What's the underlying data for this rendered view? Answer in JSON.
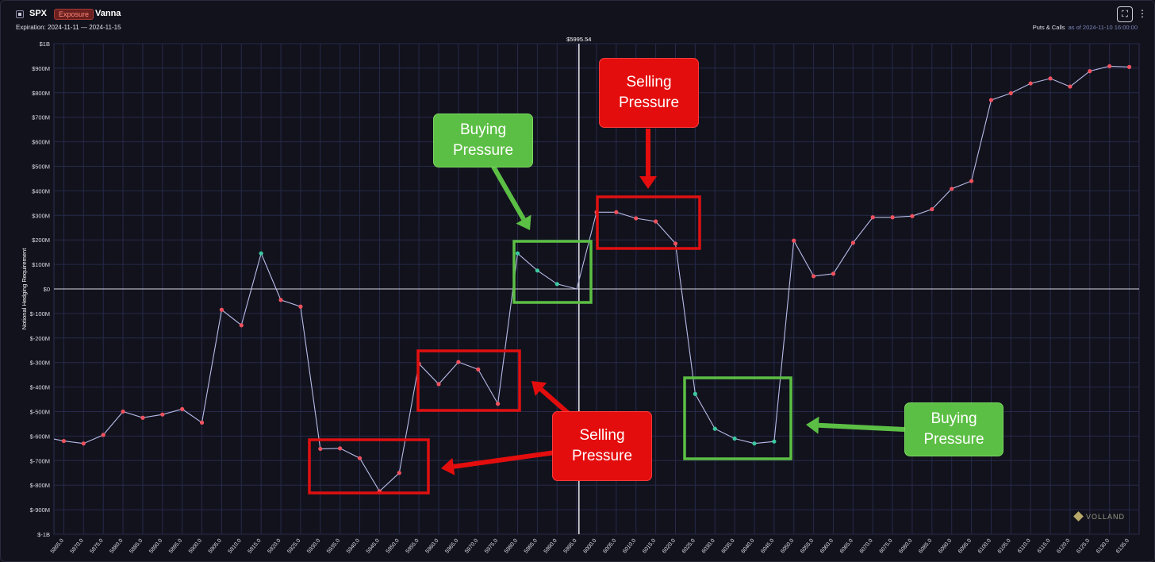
{
  "header": {
    "symbol": "SPX",
    "badge": "Exposure",
    "metric": "Vanna",
    "expiration": "Expiration: 2024-11-11 — 2024-11-15",
    "scope": "Puts & Calls",
    "as_of": "as of 2024-11-10 16:00:00",
    "fullscreen_icon": "fullscreen-icon",
    "more_icon": "more-vertical-icon"
  },
  "watermark": "VOLLAND",
  "colors": {
    "background": "#12121d",
    "grid": "#262a48",
    "line": "#b8bce8",
    "negative_point": "#f0525e",
    "positive_point": "#3cc9a0",
    "spot_line": "#e8e8ee",
    "box_red": "#e01010",
    "box_green": "#5cbf45"
  },
  "chart_data": {
    "type": "line",
    "ylabel": "Notional Hedging Requirement",
    "ylim": [
      -1000,
      1000
    ],
    "y_unit": "M",
    "y_ticks": [
      "$1B",
      "$900M",
      "$800M",
      "$700M",
      "$600M",
      "$500M",
      "$400M",
      "$300M",
      "$200M",
      "$100M",
      "$0",
      "$-100M",
      "$-200M",
      "$-300M",
      "$-400M",
      "$-500M",
      "$-600M",
      "$-700M",
      "$-800M",
      "$-900M",
      "$-1B"
    ],
    "x_ticks": [
      "5865.0",
      "5870.0",
      "5875.0",
      "5880.0",
      "5885.0",
      "5890.0",
      "5895.0",
      "5900.0",
      "5905.0",
      "5910.0",
      "5915.0",
      "5920.0",
      "5925.0",
      "5930.0",
      "5935.0",
      "5940.0",
      "5945.0",
      "5950.0",
      "5955.0",
      "5960.0",
      "5965.0",
      "5970.0",
      "5975.0",
      "5980.0",
      "5985.0",
      "5990.0",
      "5995.0",
      "6000.0",
      "6005.0",
      "6010.0",
      "6015.0",
      "6020.0",
      "6025.0",
      "6030.0",
      "6035.0",
      "6040.0",
      "6045.0",
      "6050.0",
      "6055.0",
      "6060.0",
      "6065.0",
      "6070.0",
      "6075.0",
      "6080.0",
      "6085.0",
      "6090.0",
      "6095.0",
      "6100.0",
      "6105.0",
      "6110.0",
      "6115.0",
      "6120.0",
      "6125.0",
      "6130.0",
      "6135.0"
    ],
    "spot_label": "$5995.54",
    "spot": 5995.54,
    "x": [
      5865,
      5870,
      5875,
      5880,
      5885,
      5890,
      5895,
      5900,
      5905,
      5910,
      5915,
      5920,
      5925,
      5930,
      5935,
      5940,
      5945,
      5950,
      5955,
      5960,
      5965,
      5970,
      5975,
      5980,
      5985,
      5990,
      5995,
      6000,
      6005,
      6010,
      6015,
      6020,
      6025,
      6030,
      6035,
      6040,
      6045,
      6050,
      6055,
      6060,
      6065,
      6070,
      6075,
      6080,
      6085,
      6090,
      6095,
      6100,
      6105,
      6110,
      6115,
      6120,
      6125,
      6130,
      6135
    ],
    "x_first": 5862.5,
    "y": [
      -620,
      -630,
      -595,
      -500,
      -525,
      -512,
      -490,
      -545,
      -85,
      -148,
      145,
      -45,
      -72,
      -652,
      -650,
      -690,
      -825,
      -750,
      -305,
      -388,
      -298,
      -328,
      -468,
      145,
      75,
      20,
      0,
      313,
      313,
      288,
      275,
      185,
      -428,
      -570,
      -610,
      -630,
      -622,
      197,
      52,
      62,
      188,
      292,
      292,
      297,
      325,
      408,
      440,
      770,
      798,
      838,
      858,
      825,
      888,
      908,
      905
    ],
    "y_first": -612
  },
  "annotations": [
    {
      "text": "Selling\nPressure",
      "color": "red"
    },
    {
      "text": "Buying\nPressure",
      "color": "green"
    },
    {
      "text": "Selling\nPressure",
      "color": "red"
    },
    {
      "text": "Buying\nPressure",
      "color": "green"
    }
  ]
}
